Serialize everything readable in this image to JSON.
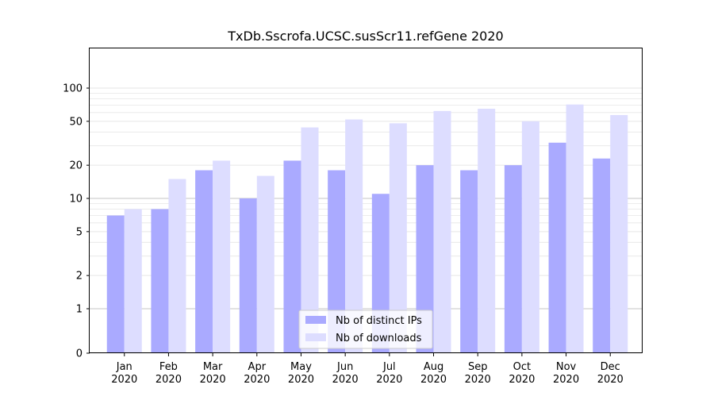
{
  "chart_data": {
    "type": "bar",
    "title": "TxDb.Sscrofa.UCSC.susScr11.refGene 2020",
    "xlabel": "",
    "ylabel": "",
    "yscale": "symlog",
    "ylim": [
      0,
      110
    ],
    "yticks": [
      0,
      1,
      2,
      5,
      10,
      20,
      50,
      100
    ],
    "categories": [
      "Jan",
      "Feb",
      "Mar",
      "Apr",
      "May",
      "Jun",
      "Jul",
      "Aug",
      "Sep",
      "Oct",
      "Nov",
      "Dec"
    ],
    "category_year": "2020",
    "series": [
      {
        "name": "Nb of distinct IPs",
        "color": "#aaaaff",
        "values": [
          7,
          8,
          18,
          10,
          22,
          18,
          11,
          20,
          18,
          20,
          32,
          23
        ]
      },
      {
        "name": "Nb of downloads",
        "color": "#ddddff",
        "values": [
          8,
          15,
          22,
          16,
          44,
          52,
          48,
          62,
          65,
          50,
          71,
          57
        ]
      }
    ],
    "legend": "bottom-center",
    "grid": true
  }
}
